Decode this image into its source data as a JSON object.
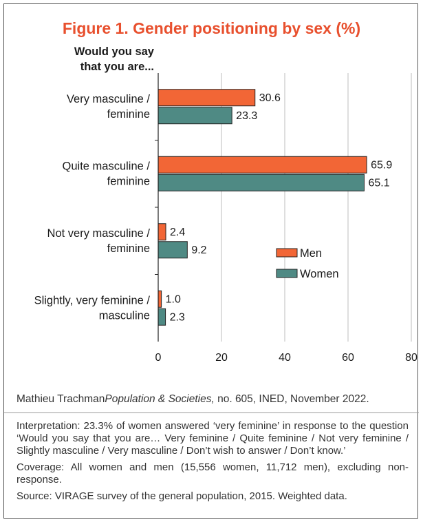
{
  "title": "Figure 1. Gender positioning by sex (%)",
  "title_color": "#e8502e",
  "chart_data": {
    "type": "bar",
    "orientation": "horizontal",
    "title": "Figure 1. Gender positioning by sex (%)",
    "axis_heading": [
      "Would you say",
      "that you are..."
    ],
    "categories": [
      [
        "Very masculine /",
        "feminine"
      ],
      [
        "Quite masculine /",
        "feminine"
      ],
      [
        "Not very masculine /",
        "feminine"
      ],
      [
        "Slightly, very feminine /",
        "masculine"
      ]
    ],
    "series": [
      {
        "name": "Men",
        "color": "#f26636",
        "values": [
          30.6,
          65.9,
          2.4,
          1.0
        ],
        "labels": [
          "30.6",
          "65.9",
          "2.4",
          "1.0"
        ]
      },
      {
        "name": "Women",
        "color": "#4f8a84",
        "values": [
          23.3,
          65.1,
          9.2,
          2.3
        ],
        "labels": [
          "23.3",
          "65.1",
          "9.2",
          "2.3"
        ]
      }
    ],
    "xlim": [
      0,
      80
    ],
    "xticks": [
      "0",
      "20",
      "40",
      "60",
      "80"
    ],
    "grid": true,
    "legend": "center-right"
  },
  "credit": {
    "author": "Mathieu Trachman",
    "journal": "Population & Societies,",
    "rest": " no. 605, INED, November 2022."
  },
  "notes": {
    "interpretation": "Interpretation: 23.3% of women answered ‘very feminine’ in response to the question ‘Would you say that you are… Very feminine / Quite feminine / Not very feminine / Slightly masculine / Very masculine / Don’t wish to answer / Don’t know.’",
    "coverage": "Coverage: All women and men (15,556 women, 11,712 men), excluding non-response.",
    "source": "Source: VIRAGE survey of the general population, 2015. Weighted data."
  }
}
